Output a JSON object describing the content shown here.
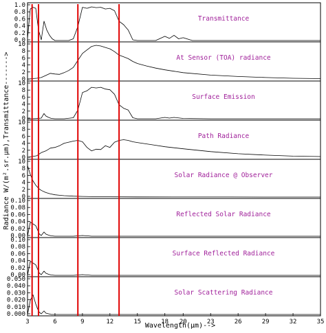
{
  "figure": {
    "ylabel": "Radiance W/(m².sr.μm),Transmittance------->",
    "xlabel": "Wavelength(μm)-->"
  },
  "chart_data": {
    "type": "line",
    "xlim": [
      3,
      35
    ],
    "x_ticks": [
      3,
      6,
      9,
      12,
      15,
      18,
      20,
      23,
      26,
      29,
      32,
      35
    ],
    "x_tick_labels": [
      "3",
      "6",
      "9",
      "12",
      "15",
      "18",
      "20",
      "23",
      "26",
      "29",
      "32",
      "35"
    ],
    "marker_lines_um": [
      3.5,
      4.2,
      8.5,
      13.0
    ],
    "marker_color": "#e00000",
    "title_color": "#a0209a",
    "panels": [
      {
        "title": "Transmittance",
        "ylim": [
          0,
          1.0
        ],
        "y_ticks": [
          "1.0",
          "0.8",
          "0.6",
          "0.4",
          "0.2",
          "0.0"
        ],
        "series": {
          "x": [
            3.0,
            3.3,
            3.6,
            3.9,
            4.2,
            4.5,
            4.8,
            5.1,
            5.4,
            5.7,
            6.0,
            6.5,
            7.0,
            7.5,
            8.0,
            8.5,
            9.0,
            9.5,
            10.0,
            10.5,
            11.0,
            11.5,
            12.0,
            12.5,
            13.0,
            13.5,
            14.0,
            14.5,
            15.0,
            16.0,
            17.0,
            18.0,
            18.5,
            19.0,
            19.5,
            20.0,
            21.0,
            23.0,
            26.0,
            29.0,
            32.0,
            35.0
          ],
          "y": [
            0.05,
            0.9,
            0.95,
            0.92,
            0.3,
            0.02,
            0.55,
            0.3,
            0.15,
            0.05,
            0.0,
            0.0,
            0.0,
            0.0,
            0.05,
            0.4,
            0.95,
            0.92,
            0.96,
            0.94,
            0.95,
            0.9,
            0.92,
            0.85,
            0.55,
            0.45,
            0.3,
            0.02,
            0.0,
            0.0,
            0.0,
            0.12,
            0.06,
            0.15,
            0.05,
            0.08,
            0.0,
            0.0,
            0.0,
            0.0,
            0.0,
            0.0
          ]
        }
      },
      {
        "title": "At Sensor (TOA) radiance",
        "ylim": [
          0,
          10
        ],
        "y_ticks": [
          "10",
          "8",
          "6",
          "4",
          "2",
          "0"
        ],
        "series": {
          "x": [
            3.0,
            3.5,
            4.0,
            4.5,
            5.0,
            5.5,
            6.0,
            6.5,
            7.0,
            7.5,
            8.0,
            8.5,
            9.0,
            9.5,
            10.0,
            10.5,
            11.0,
            11.5,
            12.0,
            12.5,
            13.0,
            13.5,
            14.0,
            14.5,
            15.0,
            16.0,
            17.0,
            18.0,
            20.0,
            23.0,
            26.0,
            29.0,
            32.0,
            35.0
          ],
          "y": [
            0.1,
            0.3,
            0.4,
            0.6,
            1.2,
            1.8,
            1.6,
            1.5,
            2.0,
            2.6,
            3.5,
            5.5,
            7.5,
            8.5,
            9.5,
            9.8,
            9.6,
            9.2,
            8.8,
            8.0,
            7.0,
            6.5,
            6.0,
            5.2,
            4.6,
            3.9,
            3.3,
            2.8,
            2.0,
            1.3,
            0.9,
            0.6,
            0.4,
            0.3
          ]
        }
      },
      {
        "title": "Surface Emission",
        "ylim": [
          0,
          10
        ],
        "y_ticks": [
          "10",
          "8",
          "6",
          "4",
          "2",
          "0"
        ],
        "series": {
          "x": [
            3.0,
            3.5,
            4.0,
            4.5,
            4.8,
            5.0,
            5.3,
            5.6,
            6.0,
            7.0,
            8.0,
            8.5,
            9.0,
            9.5,
            10.0,
            10.5,
            11.0,
            11.5,
            12.0,
            12.5,
            13.0,
            13.5,
            14.0,
            14.5,
            15.0,
            16.0,
            17.0,
            18.0,
            18.5,
            19.0,
            20.0,
            23.0,
            26.0,
            29.0,
            32.0,
            35.0
          ],
          "y": [
            0.0,
            0.0,
            0.05,
            0.2,
            1.5,
            0.8,
            0.4,
            0.1,
            0.0,
            0.0,
            0.3,
            2.5,
            7.5,
            8.0,
            9.0,
            8.8,
            9.0,
            8.5,
            8.3,
            7.0,
            4.0,
            3.0,
            2.5,
            0.3,
            0.0,
            0.0,
            0.0,
            0.4,
            0.2,
            0.4,
            0.1,
            0.0,
            0.0,
            0.0,
            0.0,
            0.0
          ]
        }
      },
      {
        "title": "Path Radiance",
        "ylim": [
          0,
          10
        ],
        "y_ticks": [
          "10",
          "8",
          "6",
          "4",
          "2",
          "0"
        ],
        "series": {
          "x": [
            3.0,
            3.5,
            4.0,
            4.5,
            5.0,
            5.5,
            6.0,
            6.5,
            7.0,
            7.5,
            8.0,
            8.5,
            9.0,
            9.5,
            10.0,
            10.5,
            11.0,
            11.5,
            12.0,
            12.5,
            13.0,
            13.5,
            14.0,
            14.5,
            15.0,
            16.0,
            17.0,
            18.0,
            20.0,
            23.0,
            26.0,
            29.0,
            32.0,
            35.0
          ],
          "y": [
            0.2,
            0.4,
            0.6,
            1.5,
            2.0,
            2.8,
            3.0,
            3.5,
            4.2,
            4.5,
            4.8,
            5.0,
            4.6,
            3.0,
            2.0,
            2.5,
            2.4,
            3.5,
            3.0,
            4.5,
            5.0,
            5.2,
            5.0,
            4.6,
            4.4,
            4.0,
            3.6,
            3.2,
            2.6,
            1.8,
            1.2,
            0.8,
            0.5,
            0.4
          ]
        }
      },
      {
        "title": "Solar Radiance @ Observer",
        "ylim": [
          0,
          10
        ],
        "y_ticks": [
          "10",
          "8",
          "6",
          "4",
          "2",
          "0"
        ],
        "series": {
          "x": [
            3.0,
            3.3,
            3.6,
            3.9,
            4.2,
            4.5,
            5.0,
            5.5,
            6.0,
            6.5,
            7.0,
            8.0,
            9.0,
            10.0,
            12.0,
            15.0,
            20.0,
            25.0,
            30.0,
            35.0
          ],
          "y": [
            9.0,
            6.5,
            4.6,
            3.4,
            2.5,
            1.9,
            1.3,
            0.9,
            0.65,
            0.5,
            0.4,
            0.25,
            0.17,
            0.12,
            0.07,
            0.04,
            0.02,
            0.01,
            0.005,
            0.0
          ]
        }
      },
      {
        "title": "Reflected Solar Radiance",
        "ylim": [
          0,
          0.1
        ],
        "y_ticks": [
          "0.10",
          "0.08",
          "0.06",
          "0.04",
          "0.02",
          "0.00"
        ],
        "series": {
          "x": [
            3.0,
            3.3,
            3.6,
            3.9,
            4.1,
            4.3,
            4.5,
            4.8,
            5.0,
            5.3,
            5.6,
            6.0,
            8.0,
            9.0,
            10.0,
            35.0
          ],
          "y": [
            0.0,
            0.04,
            0.035,
            0.03,
            0.018,
            0.006,
            0.002,
            0.012,
            0.006,
            0.003,
            0.001,
            0.0,
            0.0,
            0.002,
            0.0,
            0.0
          ]
        }
      },
      {
        "title": "Surface Reflected Radiance",
        "ylim": [
          0,
          0.1
        ],
        "y_ticks": [
          "0.10",
          "0.08",
          "0.06",
          "0.04",
          "0.02",
          "0.00"
        ],
        "series": {
          "x": [
            3.0,
            3.3,
            3.6,
            3.9,
            4.1,
            4.3,
            4.5,
            4.8,
            5.0,
            5.3,
            5.6,
            6.0,
            8.0,
            9.0,
            10.0,
            35.0
          ],
          "y": [
            0.0,
            0.04,
            0.035,
            0.03,
            0.018,
            0.006,
            0.002,
            0.012,
            0.006,
            0.003,
            0.001,
            0.0,
            0.0,
            0.002,
            0.0,
            0.0
          ]
        }
      },
      {
        "title": "Solar Scattering Radiance",
        "ylim": [
          0,
          0.05
        ],
        "y_ticks": [
          "0.050",
          "0.040",
          "0.030",
          "0.020",
          "0.010",
          "0.000"
        ],
        "series": {
          "x": [
            3.0,
            3.3,
            3.6,
            3.9,
            4.1,
            4.3,
            4.5,
            4.8,
            5.0,
            5.3,
            5.6,
            6.0,
            35.0
          ],
          "y": [
            0.0,
            0.02,
            0.028,
            0.015,
            0.008,
            0.003,
            0.001,
            0.005,
            0.002,
            0.001,
            0.0,
            0.0,
            0.0
          ]
        }
      }
    ]
  }
}
